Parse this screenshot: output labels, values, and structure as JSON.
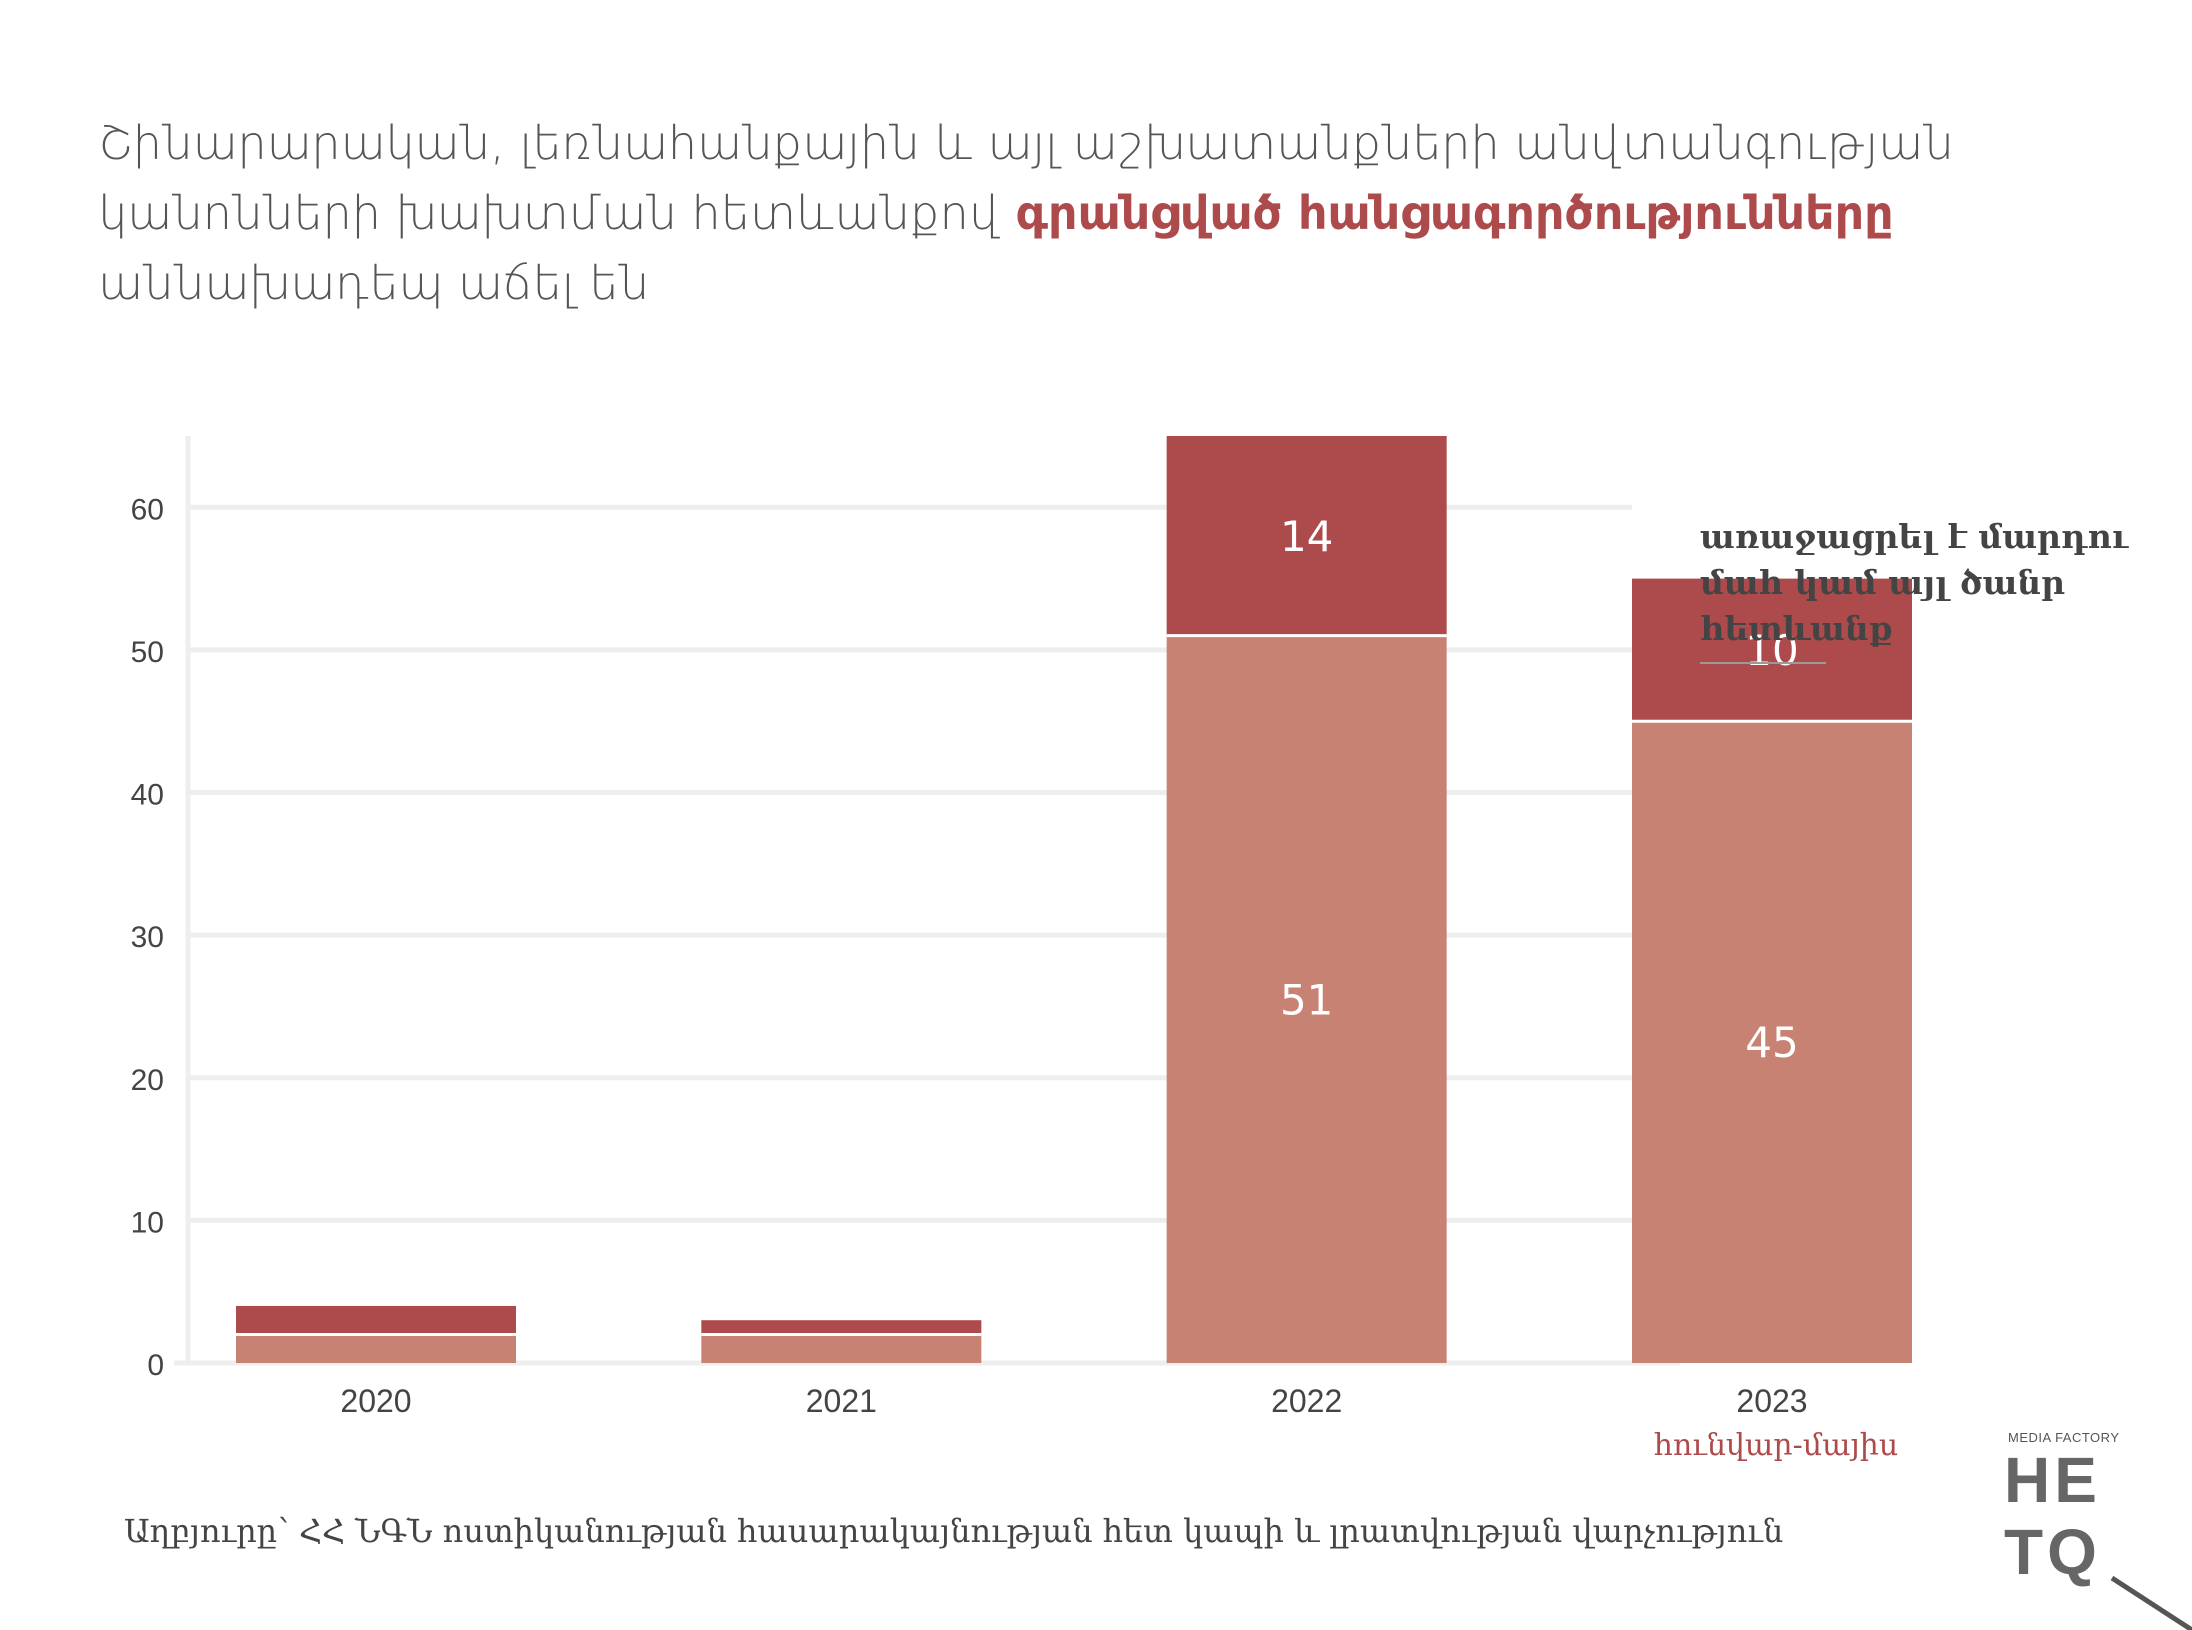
{
  "title": {
    "part1": "Շինարարական, լեռնահանքային և այլ աշխատանքների անվտանգության կանոնների խախտման հետևանքով ",
    "highlight": "գրանցված հանցագործությունները",
    "part2": " աննախադեպ աճել են"
  },
  "legend": {
    "label": "առաջացրել է մարդու մահ կամ այլ ծանր հետևանք"
  },
  "source": "Աղբյուրը՝ ՀՀ ՆԳՆ ոստիկանության հասարակայնության հետ կապի և լրատվության վարչություն",
  "logo": {
    "small": "MEDIA FACTORY",
    "row1": "HE",
    "row2": "TQ"
  },
  "colors": {
    "base": "#c78274",
    "top": "#ad4a4b",
    "grid": "#eeeeee",
    "highlight": "#ad4a4b"
  },
  "chart_data": {
    "type": "bar",
    "stacked": true,
    "categories": [
      "2020",
      "2021",
      "2022",
      "2023"
    ],
    "category_sublabels": [
      "",
      "",
      "",
      "հունվար-մայիս"
    ],
    "series": [
      {
        "values": [
          2,
          2,
          51,
          45
        ],
        "labels": [
          "",
          "",
          "51",
          "45"
        ]
      },
      {
        "name": "առաջացրել է մարդու մահ կամ այլ ծանր հետևանք",
        "values": [
          2,
          1,
          14,
          10
        ],
        "labels": [
          "",
          "",
          "14",
          "10"
        ]
      }
    ],
    "yticks": [
      "0",
      "10",
      "20",
      "30",
      "40",
      "50",
      "60"
    ],
    "ylim": [
      0,
      65
    ],
    "grid": true,
    "legend_position": "right"
  }
}
